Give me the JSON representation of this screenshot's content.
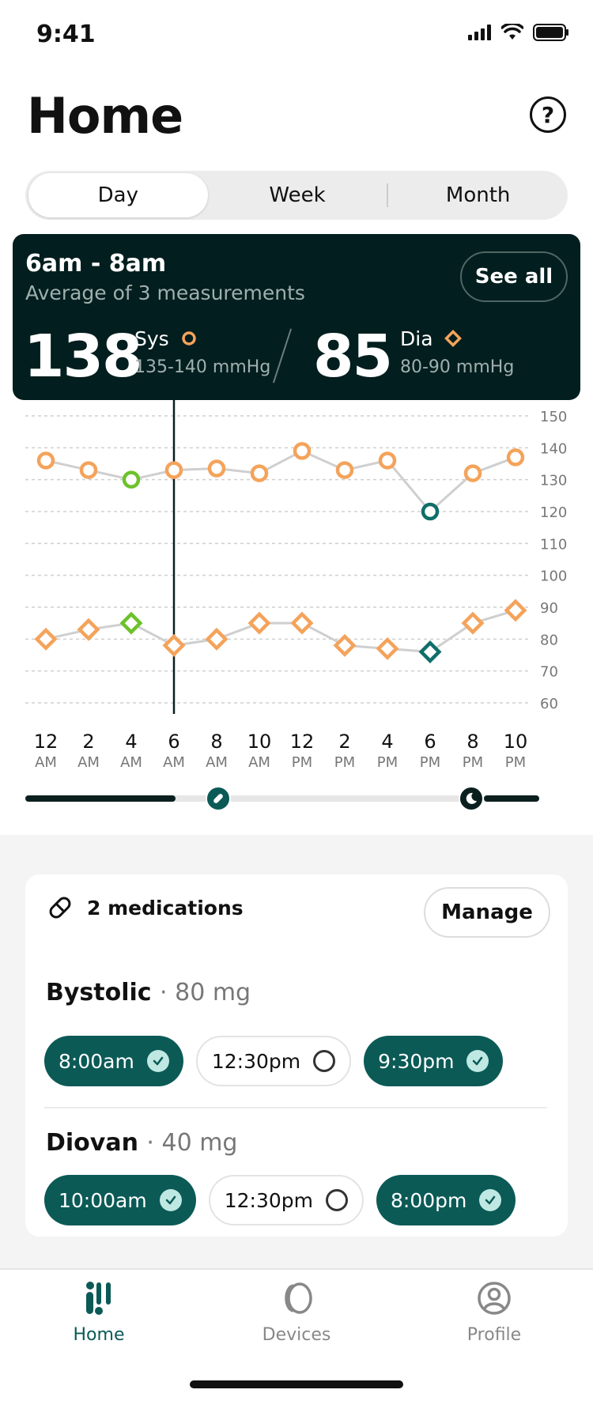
{
  "status_bar": {
    "time": "9:41"
  },
  "header": {
    "title": "Home",
    "help_icon": "question-circle-icon"
  },
  "segments": [
    {
      "label": "Day",
      "active": true
    },
    {
      "label": "Week",
      "active": false
    },
    {
      "label": "Month",
      "active": false
    }
  ],
  "summary": {
    "range": "6am - 8am",
    "average_text": "Average of 3 measurements",
    "see_all": "See all",
    "systolic": {
      "value": "138",
      "label": "Sys",
      "range": "135-140 mmHg"
    },
    "diastolic": {
      "value": "85",
      "label": "Dia",
      "range": "80-90 mmHg"
    },
    "colors": {
      "card_bg": "#031e1e",
      "sys_marker": "#f4a35b",
      "dia_marker": "#f4a35b"
    }
  },
  "chart_data": {
    "type": "line",
    "x_labels": [
      {
        "n": "12",
        "p": "AM"
      },
      {
        "n": "2",
        "p": "AM"
      },
      {
        "n": "4",
        "p": "AM"
      },
      {
        "n": "6",
        "p": "AM"
      },
      {
        "n": "8",
        "p": "AM"
      },
      {
        "n": "10",
        "p": "AM"
      },
      {
        "n": "12",
        "p": "PM"
      },
      {
        "n": "2",
        "p": "PM"
      },
      {
        "n": "4",
        "p": "PM"
      },
      {
        "n": "6",
        "p": "PM"
      },
      {
        "n": "8",
        "p": "PM"
      },
      {
        "n": "10",
        "p": "PM"
      }
    ],
    "y_ticks": [
      150,
      140,
      130,
      120,
      110,
      100,
      90,
      80,
      70,
      60
    ],
    "ylim": [
      60,
      150
    ],
    "selected_index": 3,
    "series": [
      {
        "name": "Sys",
        "marker": "circle",
        "values": [
          136,
          133,
          130,
          133,
          133.5,
          132,
          139,
          133,
          136,
          120,
          132,
          137
        ],
        "status": [
          "normal",
          "normal",
          "low",
          "normal",
          "normal",
          "normal",
          "normal",
          "normal",
          "normal",
          "alert",
          "normal",
          "normal"
        ]
      },
      {
        "name": "Dia",
        "marker": "diamond",
        "values": [
          80,
          83,
          85,
          78,
          80,
          85,
          85,
          78,
          77,
          76,
          85,
          89
        ],
        "status": [
          "normal",
          "normal",
          "low",
          "normal",
          "normal",
          "normal",
          "normal",
          "normal",
          "normal",
          "alert",
          "normal",
          "normal"
        ]
      }
    ],
    "colors": {
      "normal": "#f4a35b",
      "low": "#6cc22a",
      "alert": "#0f6e6a",
      "line": "#cfcfcf",
      "grid": "#cfcfcf"
    }
  },
  "timeline": {
    "pill_icon": "pill-icon",
    "moon_icon": "moon-icon"
  },
  "medications": {
    "header": "2 medications",
    "manage": "Manage",
    "items": [
      {
        "name": "Bystolic",
        "dose": "80 mg",
        "doses": [
          {
            "time": "8:00am",
            "taken": true
          },
          {
            "time": "12:30pm",
            "taken": false
          },
          {
            "time": "9:30pm",
            "taken": true
          }
        ]
      },
      {
        "name": "Diovan",
        "dose": "40 mg",
        "doses": [
          {
            "time": "10:00am",
            "taken": true
          },
          {
            "time": "12:30pm",
            "taken": false
          },
          {
            "time": "8:00pm",
            "taken": true
          }
        ]
      }
    ]
  },
  "tabbar": [
    {
      "label": "Home",
      "icon": "home-bars-icon",
      "active": true
    },
    {
      "label": "Devices",
      "icon": "device-icon",
      "active": false
    },
    {
      "label": "Profile",
      "icon": "profile-icon",
      "active": false
    }
  ]
}
